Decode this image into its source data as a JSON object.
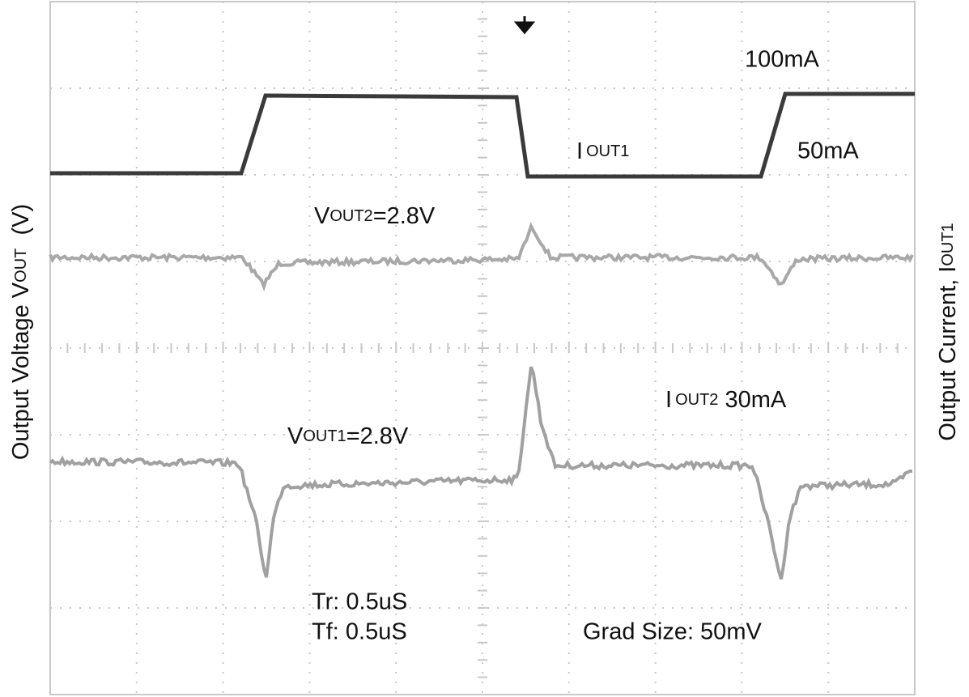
{
  "labels": {
    "i100": "100mA",
    "i50": "50mA",
    "iout1": {
      "main": "I",
      "sub": "OUT1"
    },
    "vout2": {
      "main": "V",
      "sub": "OUT2",
      "rest": "=2.8V"
    },
    "iout2": {
      "main": "I",
      "sub": "OUT2",
      "rest": " 30mA"
    },
    "vout1": {
      "main": "V",
      "sub": "OUT1",
      "rest": "=2.8V"
    },
    "tr": "Tr: 0.5uS",
    "tf": "Tf: 0.5uS",
    "grad": "Grad Size: 50mV"
  },
  "axes": {
    "left": {
      "main": "Output Voltage V",
      "sub": "OUT",
      "rest": "  (V)"
    },
    "right": {
      "main": "Output Current, I",
      "sub": "OUT1"
    }
  }
}
